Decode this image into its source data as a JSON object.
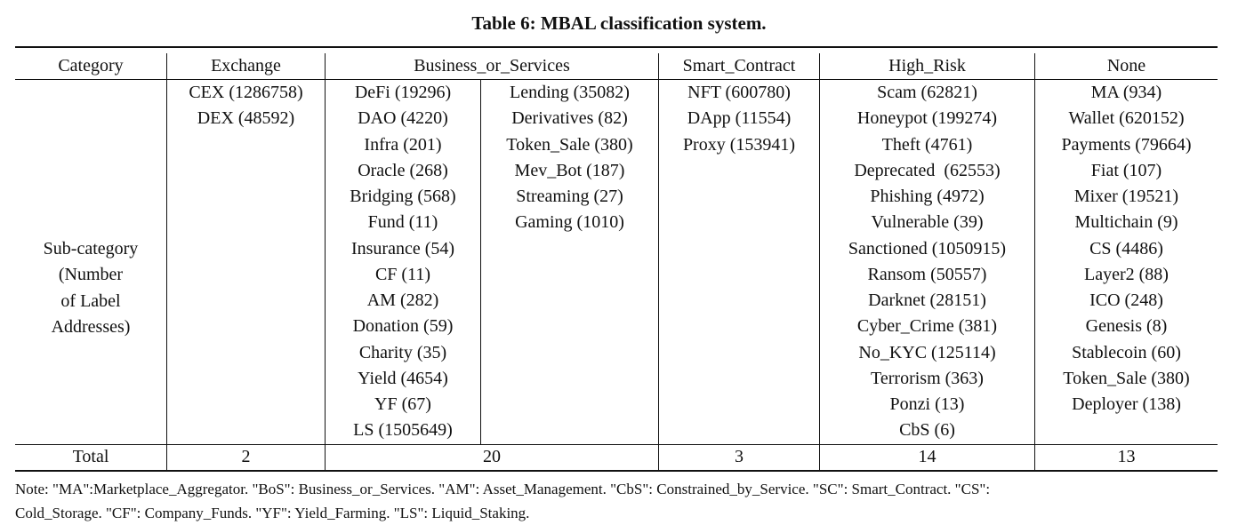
{
  "caption": "Table 6: MBAL classification system.",
  "headers": [
    "Category",
    "Exchange",
    "Business_or_Services",
    "Smart_Contract",
    "High_Risk",
    "None"
  ],
  "row_label_lines": [
    "Sub-category",
    "(Number",
    "of Label",
    "Addresses)"
  ],
  "exchange": [
    "CEX (1286758)",
    "DEX (48592)"
  ],
  "business_col1": [
    "DeFi (19296)",
    "DAO (4220)",
    "Infra (201)",
    "Oracle (268)",
    "Bridging (568)",
    "Fund (11)",
    "Insurance (54)",
    "CF (11)",
    "AM (282)",
    "Donation (59)",
    "Charity (35)",
    "Yield (4654)",
    "YF (67)",
    "LS (1505649)"
  ],
  "business_col2": [
    "Lending (35082)",
    "Derivatives (82)",
    "Token_Sale (380)",
    "Mev_Bot (187)",
    "Streaming (27)",
    "Gaming (1010)"
  ],
  "smart_contract": [
    "NFT (600780)",
    "DApp (11554)",
    "Proxy (153941)"
  ],
  "high_risk": [
    "Scam (62821)",
    "Honeypot (199274)",
    "Theft (4761)",
    "Deprecated  (62553)",
    "Phishing (4972)",
    "Vulnerable (39)",
    "Sanctioned (1050915)",
    "Ransom (50557)",
    "Darknet (28151)",
    "Cyber_Crime (381)",
    "No_KYC (125114)",
    "Terrorism (363)",
    "Ponzi (13)",
    "CbS (6)"
  ],
  "none": [
    "MA (934)",
    "Wallet (620152)",
    "Payments (79664)",
    "Fiat (107)",
    "Mixer (19521)",
    "Multichain (9)",
    "CS (4486)",
    "Layer2 (88)",
    "ICO (248)",
    "Genesis (8)",
    "Stablecoin (60)",
    "Token_Sale (380)",
    "Deployer (138)"
  ],
  "totals": {
    "label": "Total",
    "exchange": "2",
    "business": "20",
    "smart_contract": "3",
    "high_risk": "14",
    "none": "13"
  },
  "note_lines": [
    "Note: \"MA\":Marketplace_Aggregator. \"BoS\": Business_or_Services. \"AM\": Asset_Management. \"CbS\": Constrained_by_Service. \"SC\": Smart_Contract. \"CS\":",
    "Cold_Storage. \"CF\": Company_Funds. \"YF\": Yield_Farming. \"LS\": Liquid_Staking."
  ]
}
